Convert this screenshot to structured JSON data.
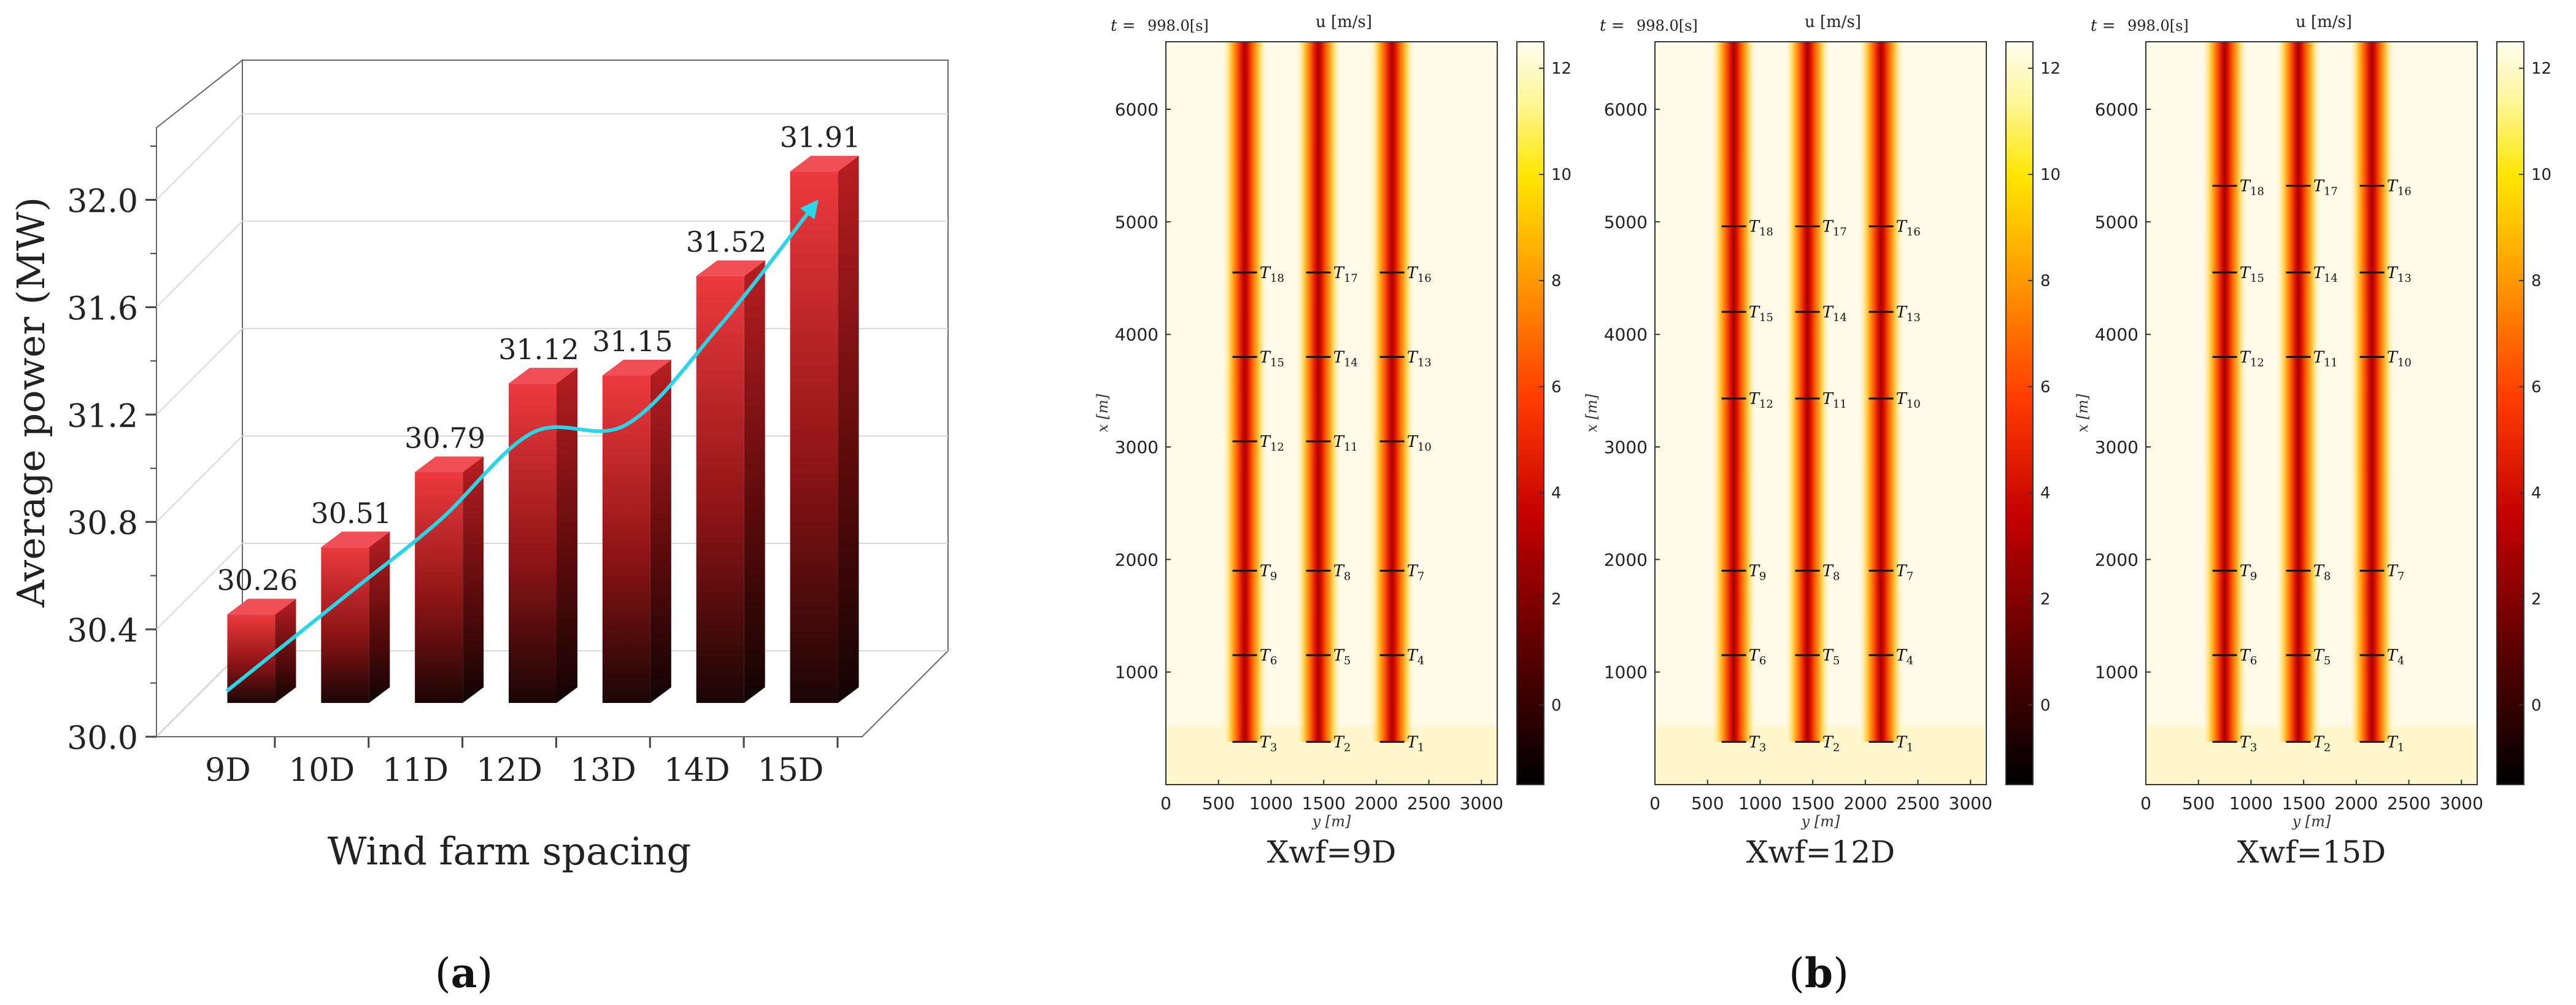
{
  "colors": {
    "bar_top": "#e8343a",
    "bar_bottom": "#1a0505",
    "trend_line": "#29d6e8",
    "grid": "#d8d8d8",
    "axis": "#555555",
    "wake_core": "#ff2a00",
    "freestream": "#fffbe8"
  },
  "panel_labels": {
    "a": "a",
    "b": "b"
  },
  "chart_data": [
    {
      "type": "bar",
      "id": "a",
      "categories": [
        "9D",
        "10D",
        "11D",
        "12D",
        "13D",
        "14D",
        "15D"
      ],
      "values": [
        30.26,
        30.51,
        30.79,
        31.12,
        31.15,
        31.52,
        31.91
      ],
      "value_labels": [
        "30.26",
        "30.51",
        "30.79",
        "31.12",
        "31.15",
        "31.52",
        "31.91"
      ],
      "xlabel": "Wind farm spacing",
      "ylabel": "Average power (MW)",
      "ylim": [
        30.0,
        32.2
      ],
      "yticks": [
        "30.0",
        "30.4",
        "30.8",
        "31.2",
        "31.6",
        "32.0"
      ],
      "ytick_values": [
        30.0,
        30.4,
        30.8,
        31.2,
        31.6,
        32.0
      ],
      "grid": true,
      "trend": "smooth line with arrow"
    },
    {
      "type": "heatmap",
      "id": "b",
      "title_time": "t =",
      "time_value": "998.0[s]",
      "field_label": "u [m/s]",
      "xlabel": "y [m]",
      "ylabel": "x [m]",
      "x_ticks": [
        "0",
        "500",
        "1000",
        "1500",
        "2000",
        "2500",
        "3000"
      ],
      "x_tick_values": [
        0,
        500,
        1000,
        1500,
        2000,
        2500,
        3000
      ],
      "y_ticks": [
        "1000",
        "2000",
        "3000",
        "4000",
        "5000",
        "6000"
      ],
      "y_tick_values": [
        1000,
        2000,
        3000,
        4000,
        5000,
        6000
      ],
      "xlim": [
        0,
        3150
      ],
      "ylim": [
        0,
        6600
      ],
      "colorbar_ticks": [
        "0",
        "2",
        "4",
        "6",
        "8",
        "10",
        "12"
      ],
      "colorbar_tick_values": [
        0,
        2,
        4,
        6,
        8,
        10,
        12
      ],
      "colorbar_range": [
        -1.5,
        12.5
      ],
      "column_y": [
        750,
        1450,
        2150
      ],
      "subplots": [
        {
          "caption": "Xwf=9D",
          "turbines": [
            {
              "n": "3",
              "y": 750,
              "x": 380
            },
            {
              "n": "2",
              "y": 1450,
              "x": 380
            },
            {
              "n": "1",
              "y": 2150,
              "x": 380
            },
            {
              "n": "6",
              "y": 750,
              "x": 1150
            },
            {
              "n": "5",
              "y": 1450,
              "x": 1150
            },
            {
              "n": "4",
              "y": 2150,
              "x": 1150
            },
            {
              "n": "9",
              "y": 750,
              "x": 1900
            },
            {
              "n": "8",
              "y": 1450,
              "x": 1900
            },
            {
              "n": "7",
              "y": 2150,
              "x": 1900
            },
            {
              "n": "12",
              "y": 750,
              "x": 3050
            },
            {
              "n": "11",
              "y": 1450,
              "x": 3050
            },
            {
              "n": "10",
              "y": 2150,
              "x": 3050
            },
            {
              "n": "15",
              "y": 750,
              "x": 3800
            },
            {
              "n": "14",
              "y": 1450,
              "x": 3800
            },
            {
              "n": "13",
              "y": 2150,
              "x": 3800
            },
            {
              "n": "18",
              "y": 750,
              "x": 4550
            },
            {
              "n": "17",
              "y": 1450,
              "x": 4550
            },
            {
              "n": "16",
              "y": 2150,
              "x": 4550
            }
          ]
        },
        {
          "caption": "Xwf=12D",
          "turbines": [
            {
              "n": "3",
              "y": 750,
              "x": 380
            },
            {
              "n": "2",
              "y": 1450,
              "x": 380
            },
            {
              "n": "1",
              "y": 2150,
              "x": 380
            },
            {
              "n": "6",
              "y": 750,
              "x": 1150
            },
            {
              "n": "5",
              "y": 1450,
              "x": 1150
            },
            {
              "n": "4",
              "y": 2150,
              "x": 1150
            },
            {
              "n": "9",
              "y": 750,
              "x": 1900
            },
            {
              "n": "8",
              "y": 1450,
              "x": 1900
            },
            {
              "n": "7",
              "y": 2150,
              "x": 1900
            },
            {
              "n": "12",
              "y": 750,
              "x": 3430
            },
            {
              "n": "11",
              "y": 1450,
              "x": 3430
            },
            {
              "n": "10",
              "y": 2150,
              "x": 3430
            },
            {
              "n": "15",
              "y": 750,
              "x": 4200
            },
            {
              "n": "14",
              "y": 1450,
              "x": 4200
            },
            {
              "n": "13",
              "y": 2150,
              "x": 4200
            },
            {
              "n": "18",
              "y": 750,
              "x": 4960
            },
            {
              "n": "17",
              "y": 1450,
              "x": 4960
            },
            {
              "n": "16",
              "y": 2150,
              "x": 4960
            }
          ]
        },
        {
          "caption": "Xwf=15D",
          "turbines": [
            {
              "n": "3",
              "y": 750,
              "x": 380
            },
            {
              "n": "2",
              "y": 1450,
              "x": 380
            },
            {
              "n": "1",
              "y": 2150,
              "x": 380
            },
            {
              "n": "6",
              "y": 750,
              "x": 1150
            },
            {
              "n": "5",
              "y": 1450,
              "x": 1150
            },
            {
              "n": "4",
              "y": 2150,
              "x": 1150
            },
            {
              "n": "9",
              "y": 750,
              "x": 1900
            },
            {
              "n": "8",
              "y": 1450,
              "x": 1900
            },
            {
              "n": "7",
              "y": 2150,
              "x": 1900
            },
            {
              "n": "12",
              "y": 750,
              "x": 3800
            },
            {
              "n": "11",
              "y": 1450,
              "x": 3800
            },
            {
              "n": "10",
              "y": 2150,
              "x": 3800
            },
            {
              "n": "15",
              "y": 750,
              "x": 4550
            },
            {
              "n": "14",
              "y": 1450,
              "x": 4550
            },
            {
              "n": "13",
              "y": 2150,
              "x": 4550
            },
            {
              "n": "18",
              "y": 750,
              "x": 5320
            },
            {
              "n": "17",
              "y": 1450,
              "x": 5320
            },
            {
              "n": "16",
              "y": 2150,
              "x": 5320
            }
          ]
        }
      ]
    }
  ]
}
